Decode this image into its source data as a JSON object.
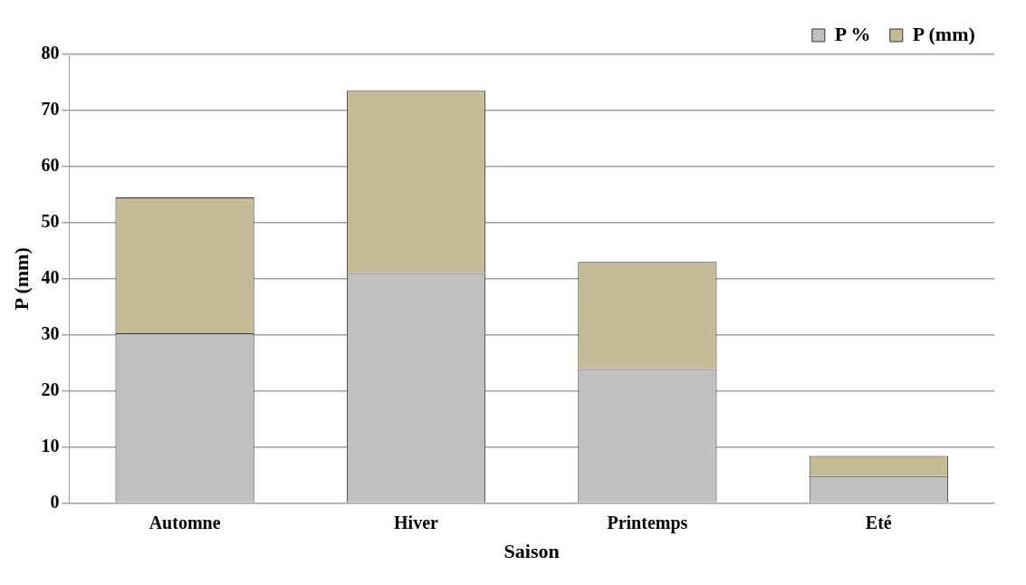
{
  "chart_data": {
    "type": "bar",
    "xlabel": "Saison",
    "ylabel": "P (mm)",
    "categories": [
      "Automne",
      "Hiver",
      "Printemps",
      "Eté"
    ],
    "stacked": true,
    "series": [
      {
        "name": "P %",
        "color": "#c0c0c0",
        "values": [
          30.3,
          41.0,
          23.9,
          4.8
        ]
      },
      {
        "name": "P (mm)",
        "color": "#c4bc96",
        "values": [
          24.2,
          32.5,
          19.1,
          3.6
        ]
      }
    ],
    "ylim": [
      0,
      80
    ],
    "yticks": [
      0,
      10,
      20,
      30,
      40,
      50,
      60,
      70,
      80
    ],
    "grid": "y",
    "legend": "top right"
  }
}
